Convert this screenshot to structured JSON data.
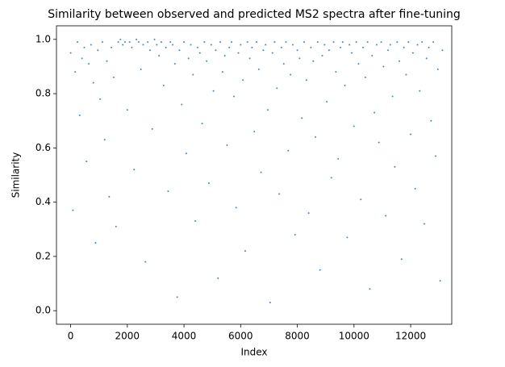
{
  "chart_data": {
    "type": "scatter",
    "title": "Similarity between observed and predicted MS2 spectra after fine-tuning",
    "xlabel": "Index",
    "ylabel": "Similarity",
    "color": "#1f77b4",
    "xlim": [
      -500,
      13450
    ],
    "xticks": [
      0,
      2000,
      4000,
      6000,
      8000,
      10000,
      12000
    ],
    "ylim": [
      -0.05,
      1.05
    ],
    "yticks": [
      {
        "value": 0,
        "label": "0.0"
      },
      {
        "value": 0.2,
        "label": "0.2"
      },
      {
        "value": 0.4,
        "label": "0.4"
      },
      {
        "value": 0.6,
        "label": "0.6"
      },
      {
        "value": 0.8,
        "label": "0.8"
      },
      {
        "value": 1,
        "label": "1.0"
      }
    ],
    "x": [
      0,
      80,
      160,
      240,
      320,
      400,
      480,
      560,
      640,
      720,
      800,
      880,
      960,
      1040,
      1120,
      1200,
      1280,
      1360,
      1440,
      1520,
      1600,
      1680,
      1760,
      1840,
      1920,
      2000,
      2080,
      2160,
      2240,
      2320,
      2400,
      2480,
      2560,
      2640,
      2720,
      2800,
      2880,
      2960,
      3040,
      3120,
      3200,
      3280,
      3360,
      3440,
      3520,
      3600,
      3680,
      3760,
      3840,
      3920,
      4000,
      4080,
      4160,
      4240,
      4320,
      4400,
      4480,
      4560,
      4640,
      4720,
      4800,
      4880,
      4960,
      5040,
      5120,
      5200,
      5280,
      5360,
      5440,
      5520,
      5600,
      5680,
      5760,
      5840,
      5920,
      6000,
      6080,
      6160,
      6240,
      6320,
      6400,
      6480,
      6560,
      6640,
      6720,
      6800,
      6880,
      6960,
      7040,
      7120,
      7200,
      7280,
      7360,
      7440,
      7520,
      7600,
      7680,
      7760,
      7840,
      7920,
      8000,
      8080,
      8160,
      8240,
      8320,
      8400,
      8480,
      8560,
      8640,
      8720,
      8800,
      8880,
      8960,
      9040,
      9120,
      9200,
      9280,
      9360,
      9440,
      9520,
      9600,
      9680,
      9760,
      9840,
      9920,
      10000,
      10080,
      10160,
      10240,
      10320,
      10400,
      10480,
      10560,
      10640,
      10720,
      10800,
      10880,
      10960,
      11040,
      11120,
      11200,
      11280,
      11360,
      11440,
      11520,
      11600,
      11680,
      11760,
      11840,
      11920,
      12000,
      12080,
      12160,
      12240,
      12320,
      12400,
      12480,
      12560,
      12640,
      12720,
      12800,
      12880,
      12960,
      13040,
      13120
    ],
    "values": [
      0.95,
      0.37,
      0.88,
      0.99,
      0.72,
      0.93,
      0.97,
      0.55,
      0.91,
      0.98,
      0.84,
      0.25,
      0.96,
      0.78,
      0.99,
      0.63,
      0.92,
      0.42,
      0.97,
      0.86,
      0.31,
      0.99,
      1.0,
      0.98,
      0.99,
      0.74,
      0.99,
      0.97,
      0.52,
      1.0,
      0.99,
      0.89,
      0.98,
      0.18,
      0.99,
      0.96,
      0.67,
      1.0,
      0.98,
      0.94,
      0.99,
      0.83,
      0.97,
      0.44,
      0.99,
      0.98,
      0.91,
      0.05,
      0.96,
      0.76,
      0.99,
      0.58,
      0.93,
      0.98,
      0.87,
      0.33,
      0.97,
      0.95,
      0.69,
      0.99,
      0.92,
      0.47,
      0.98,
      0.81,
      0.96,
      0.12,
      0.99,
      0.88,
      0.94,
      0.61,
      0.97,
      0.99,
      0.79,
      0.38,
      0.95,
      0.98,
      0.85,
      0.22,
      0.99,
      0.93,
      0.97,
      0.66,
      0.99,
      0.89,
      0.51,
      0.96,
      0.98,
      0.74,
      0.03,
      0.95,
      0.99,
      0.82,
      0.43,
      0.97,
      0.91,
      0.99,
      0.59,
      0.87,
      0.98,
      0.28,
      0.96,
      0.93,
      0.71,
      0.99,
      0.85,
      0.36,
      0.97,
      0.92,
      0.64,
      0.99,
      0.15,
      0.94,
      0.98,
      0.77,
      0.96,
      0.49,
      0.99,
      0.88,
      0.56,
      0.97,
      0.99,
      0.83,
      0.27,
      0.98,
      0.95,
      0.68,
      0.99,
      0.91,
      0.41,
      0.97,
      0.86,
      0.99,
      0.08,
      0.94,
      0.73,
      0.98,
      0.62,
      0.99,
      0.9,
      0.35,
      0.96,
      0.98,
      0.79,
      0.53,
      0.99,
      0.92,
      0.19,
      0.97,
      0.87,
      0.99,
      0.65,
      0.95,
      0.45,
      0.98,
      0.81,
      0.99,
      0.32,
      0.93,
      0.97,
      0.7,
      0.99,
      0.57,
      0.89,
      0.11,
      0.96
    ]
  }
}
